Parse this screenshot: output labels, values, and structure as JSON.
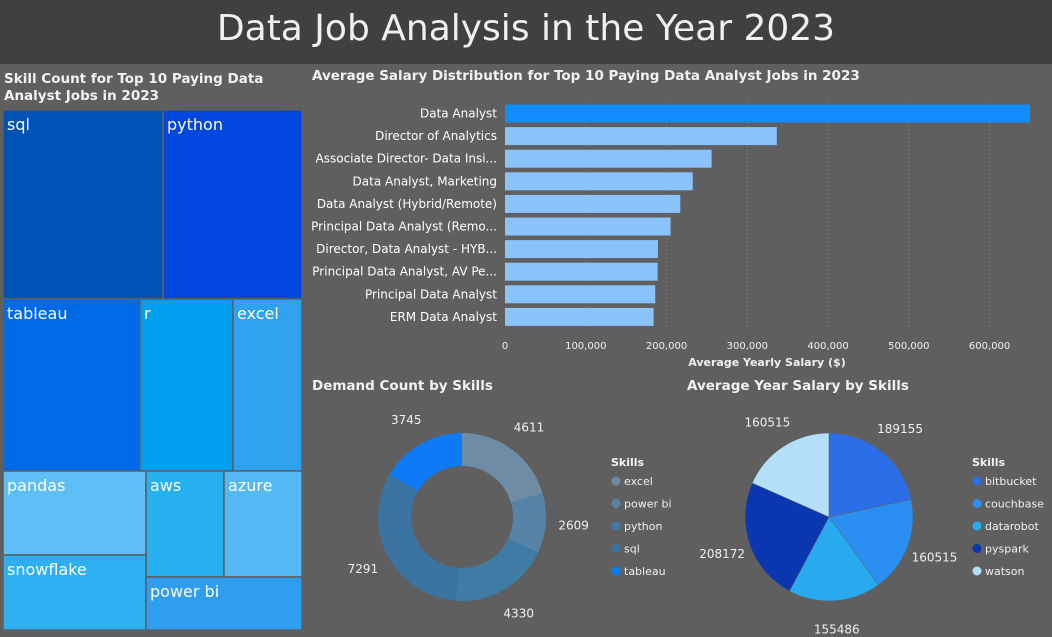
{
  "header": {
    "title": "Data Job Analysis in the Year 2023"
  },
  "treemap": {
    "title": "Skill Count for Top 10 Paying Data Analyst Jobs in 2023",
    "chart_data": {
      "type": "treemap",
      "items": [
        {
          "label": "sql",
          "color": "#0052b4"
        },
        {
          "label": "python",
          "color": "#0047e0"
        },
        {
          "label": "tableau",
          "color": "#0069e8"
        },
        {
          "label": "r",
          "color": "#00a0ee"
        },
        {
          "label": "excel",
          "color": "#2ea2ee"
        },
        {
          "label": "pandas",
          "color": "#5ebef6"
        },
        {
          "label": "aws",
          "color": "#26b0f0"
        },
        {
          "label": "azure",
          "color": "#54b8f4"
        },
        {
          "label": "snowflake",
          "color": "#2eb0f0"
        },
        {
          "label": "power bi",
          "color": "#309ef0"
        }
      ]
    }
  },
  "bar": {
    "title": "Average Salary Distribution for Top 10 Paying Data Analyst Jobs in 2023",
    "chart_data": {
      "type": "bar",
      "orientation": "horizontal",
      "categories": [
        "Data Analyst",
        "Director of Analytics",
        "Associate Director- Data Insi...",
        "Data Analyst, Marketing",
        "Data Analyst (Hybrid/Remote)",
        "Principal Data Analyst (Remo...",
        "Director, Data Analyst - HYB...",
        "Principal Data Analyst, AV Pe...",
        "Principal Data Analyst",
        "ERM Data Analyst"
      ],
      "values": [
        650000,
        336500,
        255830,
        232423,
        217000,
        205000,
        189309,
        189000,
        186000,
        184000
      ],
      "xlabel": "Average Yearly Salary ($)",
      "xlim": [
        0,
        650000
      ],
      "xticks": [
        0,
        100000,
        200000,
        300000,
        400000,
        500000,
        600000
      ],
      "xtick_labels": [
        "0",
        "100,000",
        "200,000",
        "300,000",
        "400,000",
        "500,000",
        "600,000"
      ],
      "grid": "vertical-dotted",
      "colors": [
        "#118dff",
        "#8ac3fb",
        "#8ac3fb",
        "#8ac3fb",
        "#8ac3fb",
        "#8ac3fb",
        "#8ac3fb",
        "#8ac3fb",
        "#8ac3fb",
        "#8ac3fb"
      ]
    }
  },
  "donut": {
    "title": "Demand Count by Skills",
    "chart_data": {
      "type": "pie",
      "hole": true,
      "legend_title": "Skills",
      "legend_position": "right",
      "slices": [
        {
          "label": "excel",
          "value": 4611,
          "value_label": "4611",
          "color": "#6e8da5"
        },
        {
          "label": "power bi",
          "value": 2609,
          "value_label": "2609",
          "color": "#5683a6"
        },
        {
          "label": "python",
          "value": 4330,
          "value_label": "4330",
          "color": "#3f7ba3"
        },
        {
          "label": "sql",
          "value": 7291,
          "value_label": "7291",
          "color": "#3b74a1"
        },
        {
          "label": "tableau",
          "value": 3745,
          "value_label": "3745",
          "color": "#0e7af5"
        }
      ]
    }
  },
  "pie": {
    "title": "Average Year Salary by Skills",
    "chart_data": {
      "type": "pie",
      "hole": false,
      "legend_title": "Skills",
      "legend_position": "right",
      "slices": [
        {
          "label": "bitbucket",
          "value": 189155,
          "value_label": "189155",
          "color": "#2c6ee8"
        },
        {
          "label": "couchbase",
          "value": 160515,
          "value_label": "160515",
          "color": "#2a8ff0"
        },
        {
          "label": "datarobot",
          "value": 155486,
          "value_label": "155486",
          "color": "#28aaee"
        },
        {
          "label": "pyspark",
          "value": 208172,
          "value_label": "208172",
          "color": "#0a37b0"
        },
        {
          "label": "watson",
          "value": 160515,
          "value_label": "160515",
          "color": "#b3dff8"
        }
      ]
    }
  }
}
